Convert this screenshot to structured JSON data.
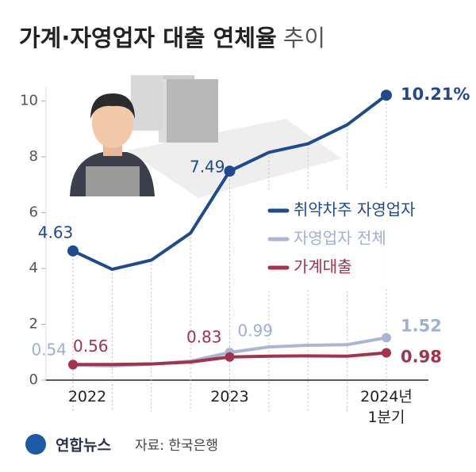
{
  "chart_data": {
    "type": "line",
    "title": "가계·자영업자 대출 연체율",
    "title_suffix": "추이",
    "categories": [
      "2022",
      null,
      null,
      null,
      "2023",
      null,
      null,
      null,
      "2024년 1분기"
    ],
    "series": [
      {
        "name": "취약차주 자영업자",
        "color": "#1f4a8f",
        "values": [
          4.63,
          3.97,
          4.3,
          5.27,
          7.49,
          8.16,
          8.47,
          9.15,
          10.21
        ],
        "value_labels": [
          "4.63",
          null,
          null,
          null,
          "7.49",
          null,
          null,
          null,
          "10.21%"
        ]
      },
      {
        "name": "자영업자 전체",
        "color": "#a9b6d3",
        "values": [
          0.54,
          0.51,
          0.57,
          0.68,
          0.99,
          1.19,
          1.25,
          1.27,
          1.52
        ],
        "value_labels": [
          "0.54",
          null,
          null,
          null,
          "0.99",
          null,
          null,
          null,
          "1.52"
        ]
      },
      {
        "name": "가계대출",
        "color": "#a3324d",
        "values": [
          0.56,
          0.56,
          0.58,
          0.65,
          0.83,
          0.86,
          0.87,
          0.86,
          0.98
        ],
        "value_labels": [
          "0.56",
          null,
          null,
          null,
          "0.83",
          null,
          null,
          null,
          "0.98"
        ]
      }
    ],
    "ylim": [
      0,
      10.5
    ],
    "yticks": [
      0,
      2,
      4,
      6,
      8,
      10
    ],
    "grid": false,
    "legend": "right",
    "brand": "연합뉴스",
    "source": "자료: 한국은행"
  }
}
